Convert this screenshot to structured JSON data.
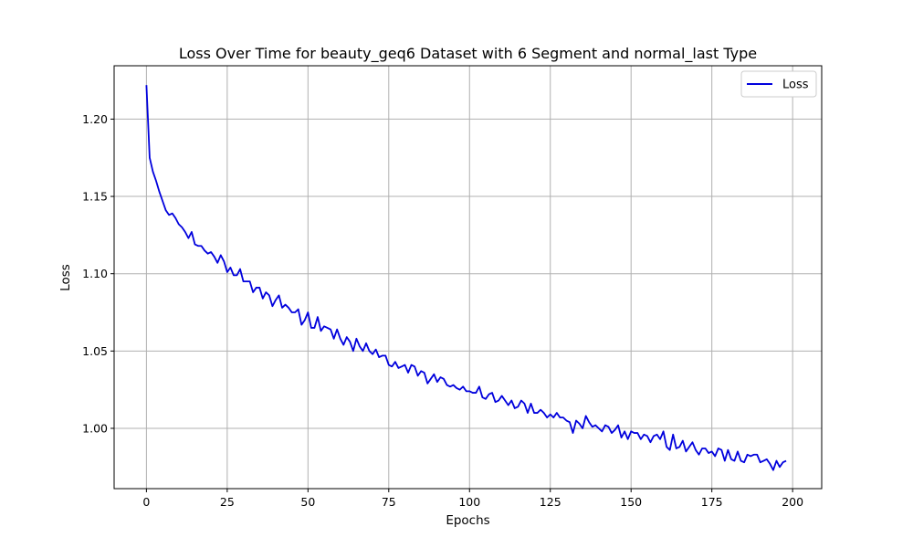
{
  "chart_data": {
    "type": "line",
    "title": "Loss Over Time for beauty_geq6 Dataset with 6 Segment and normal_last Type",
    "xlabel": "Epochs",
    "ylabel": "Loss",
    "xlim": [
      -10,
      209
    ],
    "ylim": [
      0.961,
      1.2345
    ],
    "xticks": [
      0,
      25,
      50,
      75,
      100,
      125,
      150,
      175,
      200
    ],
    "yticks": [
      1.0,
      1.05,
      1.1,
      1.15,
      1.2
    ],
    "xtick_labels": [
      "0",
      "25",
      "50",
      "75",
      "100",
      "125",
      "150",
      "175",
      "200"
    ],
    "ytick_labels": [
      "1.00",
      "1.05",
      "1.10",
      "1.15",
      "1.20"
    ],
    "grid": true,
    "legend_position": "top-right",
    "series": [
      {
        "name": "Loss",
        "color": "#0000dd",
        "start_epoch": 0,
        "values": [
          1.222,
          1.175,
          1.166,
          1.16,
          1.153,
          1.147,
          1.141,
          1.138,
          1.139,
          1.136,
          1.132,
          1.13,
          1.127,
          1.123,
          1.127,
          1.119,
          1.118,
          1.118,
          1.115,
          1.113,
          1.114,
          1.111,
          1.107,
          1.112,
          1.108,
          1.101,
          1.104,
          1.099,
          1.099,
          1.103,
          1.095,
          1.095,
          1.095,
          1.088,
          1.091,
          1.091,
          1.084,
          1.088,
          1.086,
          1.079,
          1.083,
          1.086,
          1.078,
          1.08,
          1.078,
          1.075,
          1.075,
          1.077,
          1.067,
          1.07,
          1.075,
          1.065,
          1.065,
          1.072,
          1.063,
          1.066,
          1.065,
          1.064,
          1.058,
          1.064,
          1.058,
          1.054,
          1.059,
          1.056,
          1.05,
          1.058,
          1.053,
          1.05,
          1.055,
          1.05,
          1.048,
          1.051,
          1.046,
          1.047,
          1.047,
          1.041,
          1.04,
          1.043,
          1.039,
          1.04,
          1.041,
          1.036,
          1.041,
          1.04,
          1.034,
          1.037,
          1.036,
          1.029,
          1.032,
          1.035,
          1.03,
          1.033,
          1.032,
          1.028,
          1.027,
          1.028,
          1.026,
          1.025,
          1.027,
          1.024,
          1.024,
          1.023,
          1.023,
          1.027,
          1.02,
          1.019,
          1.022,
          1.023,
          1.017,
          1.018,
          1.021,
          1.018,
          1.015,
          1.018,
          1.013,
          1.014,
          1.018,
          1.016,
          1.01,
          1.016,
          1.01,
          1.01,
          1.012,
          1.01,
          1.007,
          1.009,
          1.007,
          1.01,
          1.007,
          1.007,
          1.005,
          1.004,
          0.997,
          1.005,
          1.003,
          1.0,
          1.008,
          1.004,
          1.001,
          1.002,
          1.0,
          0.998,
          1.002,
          1.001,
          0.997,
          0.999,
          1.002,
          0.994,
          0.998,
          0.993,
          0.998,
          0.997,
          0.997,
          0.993,
          0.996,
          0.995,
          0.991,
          0.995,
          0.996,
          0.993,
          0.998,
          0.988,
          0.986,
          0.996,
          0.987,
          0.988,
          0.992,
          0.985,
          0.988,
          0.991,
          0.986,
          0.983,
          0.987,
          0.987,
          0.984,
          0.985,
          0.982,
          0.987,
          0.986,
          0.979,
          0.986,
          0.98,
          0.979,
          0.985,
          0.979,
          0.978,
          0.983,
          0.982,
          0.983,
          0.983,
          0.978,
          0.979,
          0.98,
          0.977,
          0.973,
          0.979,
          0.975,
          0.978,
          0.979
        ]
      }
    ]
  }
}
